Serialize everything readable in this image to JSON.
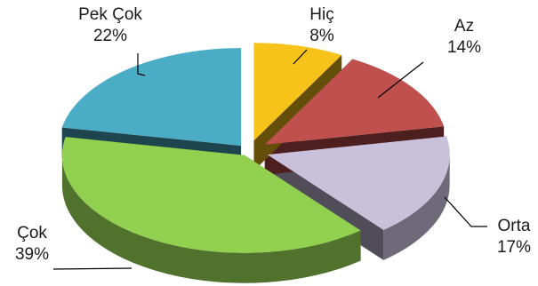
{
  "chart_data": {
    "type": "pie",
    "title": "",
    "legend": "none",
    "slices": [
      {
        "label": "Hiç",
        "value": 8,
        "value_label": "8%",
        "color": "#F7C21A"
      },
      {
        "label": "Az",
        "value": 14,
        "value_label": "14%",
        "color": "#C0504D"
      },
      {
        "label": "Orta",
        "value": 17,
        "value_label": "17%",
        "color": "#C9C0DC"
      },
      {
        "label": "Çok",
        "value": 39,
        "value_label": "39%",
        "color": "#92D050"
      },
      {
        "label": "Pek Çok",
        "value": 22,
        "value_label": "22%",
        "color": "#4BACC6"
      }
    ]
  }
}
